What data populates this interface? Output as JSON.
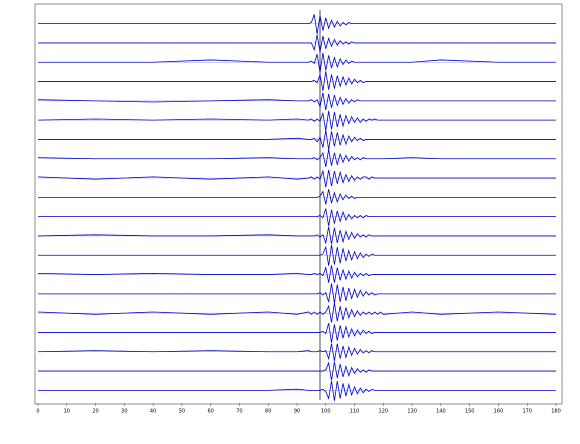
{
  "chart_data": {
    "type": "line",
    "x": [
      0,
      20,
      40,
      60,
      80,
      90,
      94,
      95,
      96,
      97,
      98,
      99,
      100,
      101,
      102,
      103,
      104,
      105,
      106,
      107,
      108,
      109,
      110,
      111,
      112,
      113,
      114,
      115,
      116,
      117,
      118,
      119,
      120,
      130,
      140,
      160,
      180
    ],
    "xlim": [
      0,
      180
    ],
    "xticks": [
      0,
      10,
      20,
      30,
      40,
      50,
      60,
      70,
      80,
      90,
      100,
      110,
      120,
      130,
      140,
      150,
      160,
      170,
      180
    ],
    "ylim": [
      -10,
      10
    ],
    "series": [
      {
        "color": "#0000cc",
        "values": [
          0,
          0,
          0,
          0,
          0,
          0,
          0,
          1,
          8,
          -9,
          7,
          -6,
          5,
          -4,
          3,
          -3,
          2,
          -2,
          1,
          -1,
          1,
          0,
          0,
          0,
          0,
          0,
          0,
          0,
          0,
          0,
          0,
          0,
          0,
          0,
          0,
          0,
          0
        ]
      },
      {
        "color": "#0000cc",
        "values": [
          0,
          0,
          0,
          0,
          0,
          0,
          0,
          0,
          -6,
          7,
          -8,
          6,
          -5,
          4,
          -3,
          3,
          -2,
          2,
          -1,
          1,
          -1,
          1,
          0,
          0,
          0,
          0,
          0,
          0,
          0,
          0,
          0,
          0,
          0,
          0,
          0,
          0,
          0
        ]
      },
      {
        "color": "#0000cc",
        "values": [
          0,
          0,
          0,
          2,
          0,
          0,
          0,
          1,
          -1,
          7,
          -9,
          8,
          -7,
          6,
          -5,
          4,
          -4,
          3,
          -2,
          2,
          -1,
          1,
          0,
          0,
          0,
          0,
          0,
          0,
          0,
          0,
          0,
          0,
          0,
          0,
          2,
          0,
          0
        ]
      },
      {
        "color": "#0000cc",
        "values": [
          0,
          0,
          0,
          0,
          0,
          0,
          0,
          0,
          1,
          -1,
          6,
          -8,
          9,
          -7,
          6,
          -6,
          5,
          -4,
          4,
          -3,
          3,
          -2,
          2,
          -1,
          1,
          -1,
          0,
          0,
          0,
          0,
          0,
          0,
          0,
          0,
          0,
          0,
          0
        ]
      },
      {
        "color": "#0000cc",
        "values": [
          1,
          0,
          -1,
          0,
          1,
          0,
          0,
          1,
          -1,
          1,
          -5,
          7,
          -8,
          6,
          -6,
          5,
          -4,
          3,
          -3,
          2,
          -2,
          1,
          -1,
          1,
          0,
          0,
          0,
          0,
          0,
          0,
          0,
          0,
          0,
          0,
          0,
          0,
          0
        ]
      },
      {
        "color": "#0000cc",
        "values": [
          0,
          1,
          0,
          1,
          0,
          1,
          0,
          1,
          -1,
          1,
          -1,
          6,
          -9,
          8,
          -8,
          7,
          -6,
          5,
          -5,
          4,
          -3,
          3,
          -2,
          2,
          -2,
          1,
          -1,
          1,
          0,
          1,
          0,
          0,
          0,
          0,
          0,
          0,
          0
        ]
      },
      {
        "color": "#0000cc",
        "values": [
          0,
          0,
          0,
          0,
          0,
          1,
          0,
          0,
          1,
          -2,
          2,
          -7,
          8,
          -9,
          7,
          -6,
          6,
          -5,
          4,
          -4,
          3,
          -2,
          2,
          -1,
          1,
          -1,
          0,
          0,
          0,
          0,
          0,
          0,
          0,
          0,
          0,
          0,
          0
        ]
      },
      {
        "color": "#0000cc",
        "values": [
          1,
          0,
          0,
          0,
          1,
          0,
          0,
          0,
          1,
          -1,
          1,
          5,
          -7,
          8,
          -6,
          5,
          -5,
          4,
          -3,
          3,
          -2,
          2,
          -1,
          1,
          -1,
          1,
          0,
          0,
          0,
          0,
          0,
          0,
          0,
          1,
          0,
          0,
          0
        ]
      },
      {
        "color": "#0000cc",
        "values": [
          1,
          -1,
          1,
          -1,
          1,
          -1,
          0,
          1,
          -1,
          1,
          -1,
          6,
          -8,
          7,
          -7,
          6,
          -5,
          5,
          -4,
          3,
          -3,
          2,
          -2,
          1,
          -1,
          1,
          1,
          -1,
          1,
          0,
          0,
          0,
          0,
          0,
          0,
          0,
          0
        ]
      },
      {
        "color": "#0000cc",
        "values": [
          0,
          0,
          0,
          0,
          0,
          0,
          0,
          0,
          0,
          0,
          1,
          5,
          -6,
          7,
          -5,
          4,
          -4,
          3,
          -2,
          2,
          -1,
          1,
          -1,
          0,
          0,
          0,
          0,
          0,
          0,
          0,
          0,
          0,
          0,
          0,
          0,
          0,
          0
        ]
      },
      {
        "color": "#0000cc",
        "values": [
          0,
          0,
          0,
          0,
          0,
          0,
          0,
          0,
          0,
          0,
          1,
          -1,
          7,
          -8,
          6,
          -6,
          5,
          -4,
          4,
          -3,
          2,
          -2,
          1,
          -1,
          1,
          -1,
          1,
          0,
          0,
          0,
          0,
          0,
          0,
          0,
          0,
          0,
          0
        ]
      },
      {
        "color": "#0000cc",
        "values": [
          0,
          1,
          0,
          0,
          1,
          0,
          0,
          0,
          0,
          1,
          -1,
          1,
          -6,
          8,
          -7,
          7,
          -6,
          5,
          -5,
          4,
          -3,
          3,
          -2,
          2,
          -1,
          1,
          -1,
          1,
          0,
          0,
          0,
          0,
          0,
          0,
          0,
          0,
          0
        ]
      },
      {
        "color": "#0000cc",
        "values": [
          0,
          0,
          0,
          0,
          0,
          0,
          0,
          0,
          0,
          0,
          0,
          1,
          7,
          -9,
          9,
          -8,
          7,
          -7,
          6,
          -5,
          4,
          -4,
          3,
          -3,
          2,
          -2,
          1,
          -1,
          1,
          0,
          0,
          0,
          0,
          0,
          0,
          0,
          0
        ]
      },
      {
        "color": "#0000cc",
        "values": [
          1,
          0,
          1,
          0,
          0,
          1,
          0,
          0,
          1,
          0,
          1,
          -1,
          6,
          -7,
          8,
          -7,
          6,
          -5,
          4,
          -4,
          3,
          -3,
          2,
          -2,
          1,
          -1,
          1,
          -1,
          0,
          0,
          0,
          0,
          0,
          0,
          0,
          0,
          0
        ]
      },
      {
        "color": "#0000cc",
        "values": [
          0,
          0,
          0,
          0,
          0,
          0,
          0,
          0,
          0,
          0,
          1,
          -1,
          1,
          -7,
          9,
          -8,
          8,
          -7,
          6,
          -6,
          5,
          -4,
          4,
          -3,
          3,
          -2,
          2,
          -1,
          1,
          -1,
          0,
          0,
          0,
          0,
          0,
          0,
          0
        ]
      },
      {
        "color": "#0000cc",
        "values": [
          1,
          -1,
          1,
          -1,
          1,
          -1,
          1,
          -1,
          1,
          -1,
          1,
          -1,
          1,
          6,
          -8,
          9,
          -7,
          6,
          -6,
          5,
          -4,
          3,
          -3,
          2,
          -2,
          1,
          -1,
          1,
          -1,
          1,
          -1,
          1,
          -1,
          1,
          -1,
          1,
          -1
        ]
      },
      {
        "color": "#0000cc",
        "values": [
          0,
          0,
          0,
          0,
          0,
          0,
          0,
          0,
          0,
          0,
          0,
          1,
          -1,
          8,
          -9,
          7,
          -7,
          6,
          -5,
          5,
          -4,
          3,
          -3,
          2,
          -2,
          2,
          -1,
          1,
          -1,
          0,
          0,
          0,
          0,
          0,
          0,
          0,
          0
        ]
      },
      {
        "color": "#0000cc",
        "values": [
          0,
          1,
          0,
          1,
          0,
          0,
          1,
          0,
          0,
          0,
          1,
          0,
          1,
          -6,
          7,
          -8,
          7,
          -6,
          5,
          -5,
          4,
          -3,
          3,
          -2,
          2,
          -1,
          1,
          -1,
          1,
          0,
          0,
          0,
          0,
          0,
          0,
          0,
          0
        ]
      },
      {
        "color": "#0000cc",
        "values": [
          0,
          0,
          0,
          0,
          0,
          0,
          0,
          0,
          0,
          0,
          0,
          0,
          1,
          7,
          -8,
          8,
          -6,
          6,
          -5,
          4,
          -4,
          3,
          -2,
          2,
          -1,
          1,
          -1,
          1,
          0,
          0,
          0,
          0,
          0,
          0,
          0,
          0,
          0
        ]
      },
      {
        "color": "#0000cc",
        "values": [
          0,
          0,
          0,
          0,
          0,
          1,
          0,
          0,
          0,
          0,
          0,
          1,
          -1,
          -7,
          8,
          -9,
          8,
          -7,
          6,
          -5,
          5,
          -4,
          3,
          -3,
          2,
          -2,
          1,
          -1,
          1,
          0,
          0,
          0,
          0,
          0,
          0,
          0,
          0
        ]
      }
    ]
  }
}
